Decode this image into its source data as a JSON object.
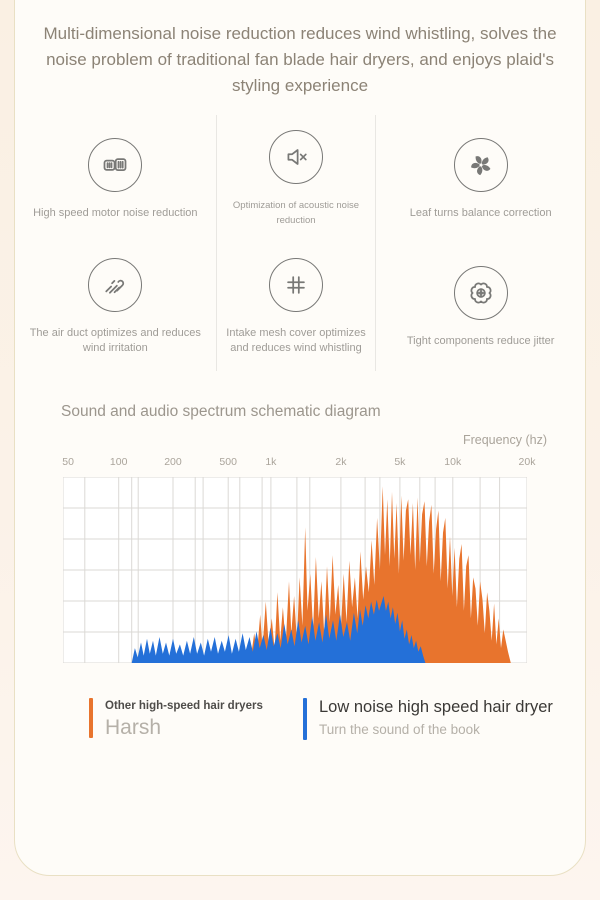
{
  "headline": "Multi-dimensional noise reduction reduces wind whistling, solves the noise problem of traditional fan blade hair dryers, and enjoys plaid's styling experience",
  "features": [
    {
      "icon": "motor-icon",
      "label": "High speed motor noise reduction"
    },
    {
      "icon": "speaker-muted-icon",
      "label": "Optimization of acoustic noise reduction"
    },
    {
      "icon": "fan-blade-icon",
      "label": "Leaf turns balance correction"
    },
    {
      "icon": "wind-flow-icon",
      "label": "The air duct optimizes and reduces wind irritation"
    },
    {
      "icon": "mesh-grid-icon",
      "label": "Intake mesh cover optimizes and reduces wind whistling"
    },
    {
      "icon": "gear-component-icon",
      "label": "Tight components reduce jitter"
    }
  ],
  "section_title": "Sound and audio spectrum schematic diagram",
  "chart_data": {
    "type": "area",
    "title": "Sound and audio spectrum schematic diagram",
    "xlabel": "Frequency (hz)",
    "x_scale": "log-schematic",
    "grid": true,
    "plot_bg": "#ffffff",
    "grid_color": "#dbd9d5",
    "h_gridlines": 7,
    "x_ticks": [
      {
        "label": "50",
        "pos": 0.011
      },
      {
        "label": "100",
        "pos": 0.12
      },
      {
        "label": "200",
        "pos": 0.237
      },
      {
        "label": "500",
        "pos": 0.356
      },
      {
        "label": "1k",
        "pos": 0.448
      },
      {
        "label": "2k",
        "pos": 0.599
      },
      {
        "label": "5k",
        "pos": 0.726
      },
      {
        "label": "10k",
        "pos": 0.84
      },
      {
        "label": "20k",
        "pos": 1.0
      }
    ],
    "v_gridlines": [
      0,
      0.047,
      0.12,
      0.148,
      0.162,
      0.237,
      0.285,
      0.302,
      0.356,
      0.381,
      0.429,
      0.448,
      0.504,
      0.532,
      0.599,
      0.651,
      0.683,
      0.726,
      0.769,
      0.802,
      0.84,
      0.899,
      0.941,
      1.0
    ],
    "x_unit": "fraction of axis (50hz→20khz)",
    "y_unit": "relative amplitude 0-1",
    "series": [
      {
        "name": "Other high-speed hair dryers",
        "descriptor": "Harsh",
        "color": "#e8742d",
        "points": [
          [
            0.385,
            0
          ],
          [
            0.39,
            0.06
          ],
          [
            0.395,
            0.02
          ],
          [
            0.4,
            0.1
          ],
          [
            0.405,
            0.03
          ],
          [
            0.412,
            0.16
          ],
          [
            0.418,
            0.05
          ],
          [
            0.425,
            0.26
          ],
          [
            0.43,
            0.08
          ],
          [
            0.437,
            0.33
          ],
          [
            0.443,
            0.1
          ],
          [
            0.45,
            0.24
          ],
          [
            0.456,
            0.07
          ],
          [
            0.462,
            0.38
          ],
          [
            0.468,
            0.12
          ],
          [
            0.474,
            0.3
          ],
          [
            0.48,
            0.1
          ],
          [
            0.487,
            0.44
          ],
          [
            0.492,
            0.16
          ],
          [
            0.498,
            0.36
          ],
          [
            0.504,
            0.12
          ],
          [
            0.51,
            0.46
          ],
          [
            0.516,
            0.2
          ],
          [
            0.522,
            0.73
          ],
          [
            0.527,
            0.28
          ],
          [
            0.533,
            0.48
          ],
          [
            0.539,
            0.18
          ],
          [
            0.545,
            0.57
          ],
          [
            0.551,
            0.24
          ],
          [
            0.557,
            0.44
          ],
          [
            0.563,
            0.16
          ],
          [
            0.569,
            0.52
          ],
          [
            0.575,
            0.22
          ],
          [
            0.581,
            0.58
          ],
          [
            0.587,
            0.26
          ],
          [
            0.593,
            0.42
          ],
          [
            0.599,
            0.18
          ],
          [
            0.605,
            0.48
          ],
          [
            0.611,
            0.22
          ],
          [
            0.617,
            0.55
          ],
          [
            0.623,
            0.3
          ],
          [
            0.629,
            0.46
          ],
          [
            0.635,
            0.24
          ],
          [
            0.641,
            0.6
          ],
          [
            0.647,
            0.34
          ],
          [
            0.653,
            0.52
          ],
          [
            0.659,
            0.38
          ],
          [
            0.665,
            0.66
          ],
          [
            0.671,
            0.42
          ],
          [
            0.677,
            0.78
          ],
          [
            0.683,
            0.5
          ],
          [
            0.689,
            0.95
          ],
          [
            0.694,
            0.58
          ],
          [
            0.699,
            0.88
          ],
          [
            0.704,
            0.52
          ],
          [
            0.709,
            0.92
          ],
          [
            0.714,
            0.56
          ],
          [
            0.719,
            0.86
          ],
          [
            0.724,
            0.48
          ],
          [
            0.729,
            0.9
          ],
          [
            0.734,
            0.55
          ],
          [
            0.739,
            0.82
          ],
          [
            0.744,
            0.88
          ],
          [
            0.749,
            0.58
          ],
          [
            0.754,
            0.86
          ],
          [
            0.759,
            0.5
          ],
          [
            0.764,
            0.89
          ],
          [
            0.769,
            0.54
          ],
          [
            0.774,
            0.8
          ],
          [
            0.779,
            0.87
          ],
          [
            0.784,
            0.52
          ],
          [
            0.789,
            0.76
          ],
          [
            0.794,
            0.85
          ],
          [
            0.799,
            0.48
          ],
          [
            0.804,
            0.72
          ],
          [
            0.809,
            0.82
          ],
          [
            0.814,
            0.44
          ],
          [
            0.819,
            0.7
          ],
          [
            0.824,
            0.78
          ],
          [
            0.829,
            0.4
          ],
          [
            0.834,
            0.68
          ],
          [
            0.839,
            0.36
          ],
          [
            0.844,
            0.62
          ],
          [
            0.849,
            0.3
          ],
          [
            0.854,
            0.56
          ],
          [
            0.859,
            0.64
          ],
          [
            0.864,
            0.28
          ],
          [
            0.869,
            0.52
          ],
          [
            0.874,
            0.58
          ],
          [
            0.879,
            0.24
          ],
          [
            0.884,
            0.46
          ],
          [
            0.889,
            0.4
          ],
          [
            0.894,
            0.2
          ],
          [
            0.899,
            0.44
          ],
          [
            0.904,
            0.34
          ],
          [
            0.909,
            0.16
          ],
          [
            0.914,
            0.38
          ],
          [
            0.919,
            0.28
          ],
          [
            0.924,
            0.12
          ],
          [
            0.929,
            0.32
          ],
          [
            0.934,
            0.1
          ],
          [
            0.939,
            0.24
          ],
          [
            0.944,
            0.08
          ],
          [
            0.949,
            0.18
          ],
          [
            0.954,
            0.12
          ],
          [
            0.959,
            0.06
          ],
          [
            0.965,
            0
          ]
        ]
      },
      {
        "name": "Low noise high speed hair dryer",
        "descriptor": "Turn the sound of the book",
        "color": "#2470d8",
        "points": [
          [
            0.148,
            0
          ],
          [
            0.155,
            0.08
          ],
          [
            0.161,
            0.03
          ],
          [
            0.168,
            0.11
          ],
          [
            0.174,
            0.04
          ],
          [
            0.181,
            0.13
          ],
          [
            0.187,
            0.05
          ],
          [
            0.194,
            0.12
          ],
          [
            0.2,
            0.04
          ],
          [
            0.208,
            0.14
          ],
          [
            0.215,
            0.05
          ],
          [
            0.222,
            0.11
          ],
          [
            0.229,
            0.04
          ],
          [
            0.237,
            0.13
          ],
          [
            0.244,
            0.05
          ],
          [
            0.252,
            0.1
          ],
          [
            0.259,
            0.04
          ],
          [
            0.267,
            0.12
          ],
          [
            0.274,
            0.05
          ],
          [
            0.282,
            0.14
          ],
          [
            0.289,
            0.05
          ],
          [
            0.297,
            0.11
          ],
          [
            0.304,
            0.04
          ],
          [
            0.312,
            0.13
          ],
          [
            0.319,
            0.06
          ],
          [
            0.327,
            0.14
          ],
          [
            0.334,
            0.05
          ],
          [
            0.342,
            0.12
          ],
          [
            0.349,
            0.06
          ],
          [
            0.357,
            0.15
          ],
          [
            0.364,
            0.05
          ],
          [
            0.372,
            0.13
          ],
          [
            0.379,
            0.06
          ],
          [
            0.387,
            0.16
          ],
          [
            0.394,
            0.07
          ],
          [
            0.402,
            0.14
          ],
          [
            0.409,
            0.06
          ],
          [
            0.417,
            0.17
          ],
          [
            0.424,
            0.08
          ],
          [
            0.432,
            0.15
          ],
          [
            0.439,
            0.07
          ],
          [
            0.447,
            0.19
          ],
          [
            0.454,
            0.09
          ],
          [
            0.462,
            0.16
          ],
          [
            0.469,
            0.08
          ],
          [
            0.477,
            0.21
          ],
          [
            0.484,
            0.1
          ],
          [
            0.492,
            0.18
          ],
          [
            0.499,
            0.09
          ],
          [
            0.507,
            0.23
          ],
          [
            0.514,
            0.11
          ],
          [
            0.522,
            0.2
          ],
          [
            0.529,
            0.1
          ],
          [
            0.537,
            0.25
          ],
          [
            0.544,
            0.12
          ],
          [
            0.552,
            0.22
          ],
          [
            0.559,
            0.11
          ],
          [
            0.567,
            0.26
          ],
          [
            0.574,
            0.13
          ],
          [
            0.582,
            0.23
          ],
          [
            0.589,
            0.12
          ],
          [
            0.597,
            0.26
          ],
          [
            0.604,
            0.14
          ],
          [
            0.612,
            0.22
          ],
          [
            0.619,
            0.12
          ],
          [
            0.627,
            0.27
          ],
          [
            0.634,
            0.16
          ],
          [
            0.64,
            0.29
          ],
          [
            0.646,
            0.2
          ],
          [
            0.652,
            0.31
          ],
          [
            0.658,
            0.24
          ],
          [
            0.664,
            0.33
          ],
          [
            0.67,
            0.26
          ],
          [
            0.676,
            0.34
          ],
          [
            0.681,
            0.28
          ],
          [
            0.686,
            0.32
          ],
          [
            0.691,
            0.36
          ],
          [
            0.696,
            0.28
          ],
          [
            0.701,
            0.33
          ],
          [
            0.706,
            0.24
          ],
          [
            0.711,
            0.3
          ],
          [
            0.716,
            0.21
          ],
          [
            0.721,
            0.27
          ],
          [
            0.726,
            0.17
          ],
          [
            0.731,
            0.23
          ],
          [
            0.736,
            0.13
          ],
          [
            0.741,
            0.18
          ],
          [
            0.746,
            0.1
          ],
          [
            0.751,
            0.15
          ],
          [
            0.756,
            0.08
          ],
          [
            0.761,
            0.12
          ],
          [
            0.766,
            0.06
          ],
          [
            0.771,
            0.09
          ],
          [
            0.776,
            0.04
          ],
          [
            0.781,
            0
          ]
        ]
      }
    ]
  },
  "legend": {
    "items": [
      {
        "title": "Other high-speed hair dryers",
        "subtitle": "Harsh",
        "bar_color": "#e8742d"
      },
      {
        "title": "Low noise high speed hair dryer",
        "subtitle": "Turn the sound of the book",
        "bar_color": "#2470d8"
      }
    ]
  },
  "colors": {
    "orange_series": "#e8742d",
    "blue_series": "#2470d8",
    "card_bg": "#fefcf8",
    "card_border": "#e9e0c4",
    "headline_text": "#8c8376",
    "muted_text": "#9f9c97",
    "grid_line": "#dbd9d5"
  }
}
